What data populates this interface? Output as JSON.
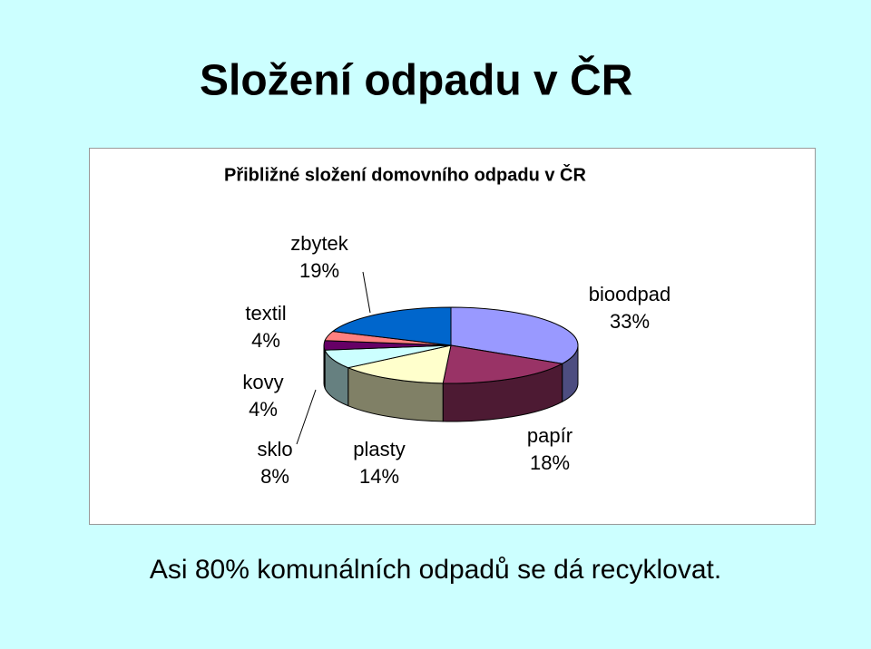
{
  "slide_title": "Složení odpadu v ČR",
  "chart_data": {
    "type": "pie3d",
    "title": "Přibližné složení domovního odpadu v ČR",
    "categories": [
      "bioodpad",
      "papír",
      "plasty",
      "sklo",
      "kovy",
      "textil",
      "zbytek"
    ],
    "values": [
      33,
      18,
      14,
      8,
      4,
      4,
      19
    ],
    "value_labels": [
      "33%",
      "18%",
      "14%",
      "8%",
      "4%",
      "4%",
      "19%"
    ],
    "colors": [
      "#9999ff",
      "#993366",
      "#ffffcc",
      "#ccffff",
      "#660066",
      "#ff8080",
      "#0066cc"
    ]
  },
  "footer": "Asi 80% komunálních odpadů se dá recyklovat."
}
